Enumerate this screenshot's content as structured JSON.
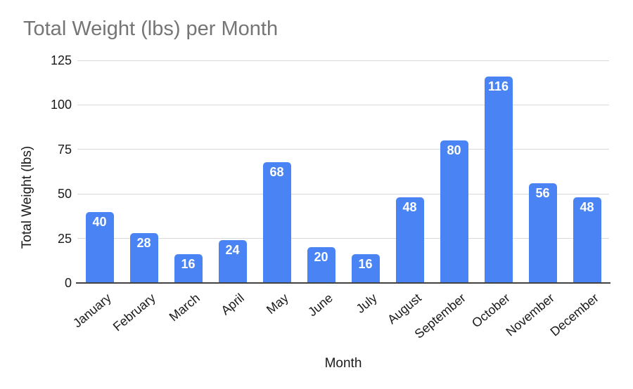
{
  "chart_data": {
    "type": "bar",
    "title": "Total Weight (lbs) per Month",
    "xlabel": "Month",
    "ylabel": "Total Weight (lbs)",
    "categories": [
      "January",
      "February",
      "March",
      "April",
      "May",
      "June",
      "July",
      "August",
      "September",
      "October",
      "November",
      "December"
    ],
    "values": [
      40,
      28,
      16,
      24,
      68,
      20,
      16,
      48,
      80,
      116,
      56,
      48
    ],
    "ylim": [
      0,
      125
    ],
    "yticks": [
      0,
      25,
      50,
      75,
      100,
      125
    ],
    "grid": true,
    "legend_position": "none",
    "bar_color": "#4a84f4",
    "value_label_color": "#ffffff",
    "title_color": "#757575",
    "axis_text_color": "#1a1a1a",
    "gridline_color": "#d9d9d9",
    "axis_line_color": "#424242"
  }
}
